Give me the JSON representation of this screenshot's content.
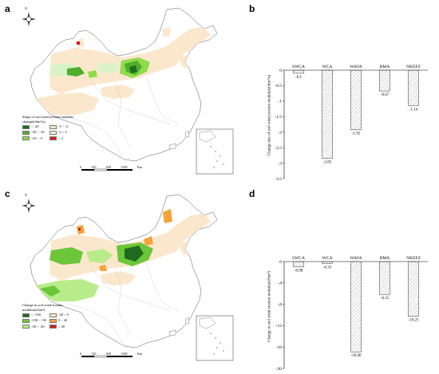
{
  "panels": {
    "a": {
      "letter": "a"
    },
    "b": {
      "letter": "b"
    },
    "c": {
      "letter": "c"
    },
    "d": {
      "letter": "d"
    }
  },
  "map_a": {
    "north_label": "N",
    "scale_labels": [
      "0",
      "325",
      "650",
      "1300"
    ],
    "scale_unit": "Km",
    "legend_title_1": "Slope of soil wind erosion modulus",
    "legend_title_2": "change(t/hm²/a)",
    "legend": [
      {
        "label": "< -20",
        "color": "#1f6b1f"
      },
      {
        "label": "-5 ~ -2",
        "color": "#d9f2c6"
      },
      {
        "label": "-20 ~ -10",
        "color": "#4fae2c"
      },
      {
        "label": "-2 ~ 2",
        "color": "#fbe7cc"
      },
      {
        "label": "-10 ~ -5",
        "color": "#8fdc4a"
      },
      {
        "label": "> 2",
        "color": "#d7191c"
      }
    ]
  },
  "map_c": {
    "north_label": "N",
    "scale_labels": [
      "0",
      "325",
      "650",
      "1300"
    ],
    "scale_unit": "Km",
    "legend_title_1": "Change in soil wind erosion",
    "legend_title_2": "modulus(t/hm²)",
    "legend": [
      {
        "label": "< -150",
        "color": "#1f6b1f"
      },
      {
        "label": "-20 ~ 5",
        "color": "#fbe7cc"
      },
      {
        "label": "-150 ~ -50",
        "color": "#6cc63a"
      },
      {
        "label": "5 ~ 20",
        "color": "#f4a23a"
      },
      {
        "label": "-50 ~ -20",
        "color": "#b8ec8a"
      },
      {
        "label": "> 20",
        "color": "#d7191c"
      }
    ]
  },
  "chart_data": [
    {
      "type": "bar",
      "categories": [
        "SWCA",
        "WCA",
        "WAFA",
        "BMA",
        "NKEFZ"
      ],
      "values": [
        -0.1,
        -2.85,
        -1.92,
        -0.67,
        -1.14
      ],
      "value_labels": [
        "-0.1",
        "-2.85",
        "-1.92",
        "-0.67",
        "-1.14"
      ],
      "ylabel": "Change rate of soil wind erosion modulus(t/hm²/a)",
      "ylim": [
        -3.5,
        0
      ],
      "yticks": [
        0,
        -0.5,
        -1,
        -1.5,
        -2,
        -2.5,
        -3,
        -3.5
      ],
      "ytick_labels": [
        "0",
        "-0.5",
        "-1",
        "-1.5",
        "-2",
        "-2.5",
        "-3",
        "-3.5"
      ],
      "bar_fill": "hatched",
      "grid": false
    },
    {
      "type": "bar",
      "categories": [
        "SWCA",
        "WCA",
        "WAFA",
        "BMA",
        "NKEFZ"
      ],
      "values": [
        -0.98,
        -0.35,
        -16.9,
        -6.15,
        -10.25
      ],
      "value_labels": [
        "-0.98",
        "-0.35",
        "-16.90",
        "-6.15",
        "-10.25"
      ],
      "ylabel": "Change in soil wind erosion modulus(t/hm²)",
      "ylim": [
        -20,
        0
      ],
      "yticks": [
        0,
        -4,
        -8,
        -12,
        -16,
        -20
      ],
      "ytick_labels": [
        "0",
        "-4",
        "-8",
        "-12",
        "-16",
        "-20"
      ],
      "bar_fill": "hatched",
      "grid": false
    }
  ]
}
